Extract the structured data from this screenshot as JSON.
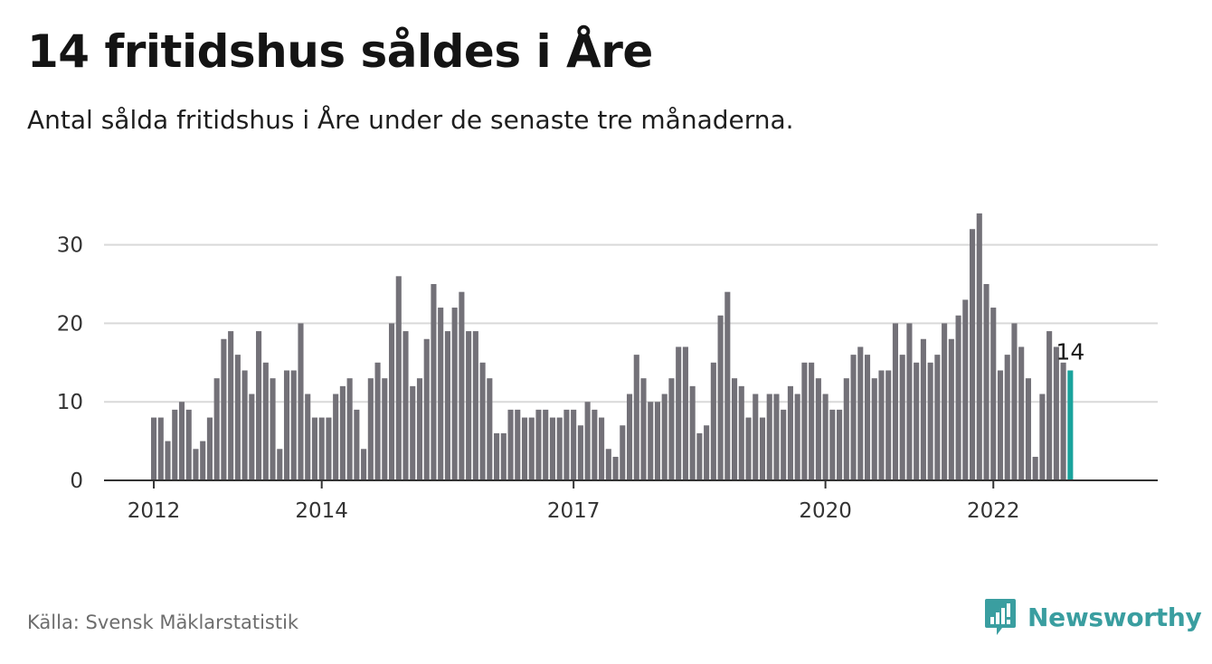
{
  "header": {
    "title": "14 fritidshus såldes i Åre",
    "subtitle": "Antal sålda fritidshus i Åre under de senaste tre månaderna."
  },
  "footer": {
    "source": "Källa: Svensk Mäklarstatistik",
    "brand": "Newsworthy",
    "brand_icon": "newsworthy-logo-icon"
  },
  "colors": {
    "bar": "#737178",
    "highlight": "#1aa39c",
    "grid": "#d9d9d9",
    "axis": "#333333",
    "brand": "#3a9ea0"
  },
  "chart_data": {
    "type": "bar",
    "y_ticks": [
      0,
      10,
      20,
      30
    ],
    "ylim": [
      0,
      35
    ],
    "x_tick_labels": [
      {
        "label": "2012",
        "index": 0
      },
      {
        "label": "2014",
        "index": 24
      },
      {
        "label": "2017",
        "index": 60
      },
      {
        "label": "2020",
        "index": 96
      },
      {
        "label": "2022",
        "index": 120
      }
    ],
    "grid": true,
    "highlight_index": 131,
    "highlight_label": "14",
    "values": [
      8,
      8,
      5,
      9,
      10,
      9,
      4,
      5,
      8,
      13,
      18,
      19,
      16,
      14,
      11,
      19,
      15,
      13,
      4,
      14,
      14,
      20,
      11,
      8,
      8,
      8,
      11,
      12,
      13,
      9,
      4,
      13,
      15,
      13,
      20,
      26,
      19,
      12,
      13,
      18,
      25,
      22,
      19,
      22,
      24,
      19,
      19,
      15,
      13,
      6,
      6,
      9,
      9,
      8,
      8,
      9,
      9,
      8,
      8,
      9,
      9,
      7,
      10,
      9,
      8,
      4,
      3,
      7,
      11,
      16,
      13,
      10,
      10,
      11,
      13,
      17,
      17,
      12,
      6,
      7,
      15,
      21,
      24,
      13,
      12,
      8,
      11,
      8,
      11,
      11,
      9,
      12,
      11,
      15,
      15,
      13,
      11,
      9,
      9,
      13,
      16,
      17,
      16,
      13,
      14,
      14,
      20,
      16,
      20,
      15,
      18,
      15,
      16,
      20,
      18,
      21,
      23,
      32,
      34,
      25,
      22,
      14,
      16,
      20,
      17,
      13,
      3,
      11,
      19,
      17,
      15,
      14
    ]
  }
}
